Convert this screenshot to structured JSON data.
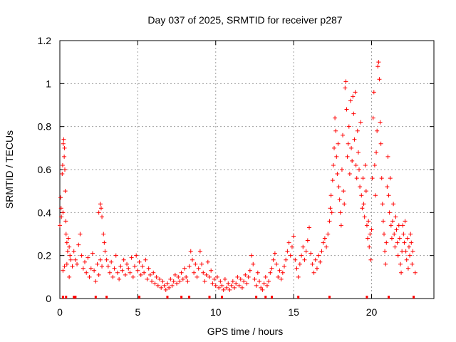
{
  "chart_data": {
    "type": "scatter",
    "title": "Day 037 of 2025, SRMTID for receiver p287",
    "xlabel": "GPS time / hours",
    "ylabel": "SRMTID / TECUs",
    "xlim": [
      0,
      24
    ],
    "ylim": [
      0,
      1.2
    ],
    "xticks": [
      0,
      5,
      10,
      15,
      20
    ],
    "xtick_labels": [
      "0",
      "5",
      "10",
      "15",
      "20"
    ],
    "yticks": [
      0,
      0.2,
      0.4,
      0.6,
      0.8,
      1.0,
      1.2
    ],
    "ytick_labels": [
      "0",
      "0.2",
      "0.4",
      "0.6",
      "0.8",
      "1",
      "1.2"
    ],
    "grid": true,
    "marker": "plus",
    "color": "#ff0000",
    "series": [
      {
        "name": "SRMTID",
        "points": [
          [
            0.0,
            0.34
          ],
          [
            0.05,
            0.47
          ],
          [
            0.08,
            0.42
          ],
          [
            0.1,
            0.38
          ],
          [
            0.15,
            0.58
          ],
          [
            0.18,
            0.62
          ],
          [
            0.2,
            0.4
          ],
          [
            0.22,
            0.72
          ],
          [
            0.25,
            0.74
          ],
          [
            0.28,
            0.66
          ],
          [
            0.3,
            0.7
          ],
          [
            0.32,
            0.6
          ],
          [
            0.35,
            0.5
          ],
          [
            0.38,
            0.36
          ],
          [
            0.4,
            0.3
          ],
          [
            0.45,
            0.26
          ],
          [
            0.5,
            0.22
          ],
          [
            0.55,
            0.28
          ],
          [
            0.6,
            0.24
          ],
          [
            0.65,
            0.2
          ],
          [
            0.7,
            0.18
          ],
          [
            0.2,
            0.13
          ],
          [
            0.3,
            0.15
          ],
          [
            0.45,
            0.16
          ],
          [
            0.6,
            0.1
          ],
          [
            0.8,
            0.15
          ],
          [
            0.9,
            0.22
          ],
          [
            1.0,
            0.18
          ],
          [
            1.1,
            0.16
          ],
          [
            1.2,
            0.25
          ],
          [
            1.3,
            0.3
          ],
          [
            1.4,
            0.2
          ],
          [
            1.5,
            0.14
          ],
          [
            1.6,
            0.17
          ],
          [
            1.7,
            0.12
          ],
          [
            1.8,
            0.19
          ],
          [
            1.9,
            0.1
          ],
          [
            2.0,
            0.14
          ],
          [
            2.1,
            0.21
          ],
          [
            2.2,
            0.13
          ],
          [
            2.3,
            0.08
          ],
          [
            2.4,
            0.16
          ],
          [
            2.5,
            0.11
          ],
          [
            2.6,
            0.18
          ],
          [
            2.7,
            0.15
          ],
          [
            2.5,
            0.4
          ],
          [
            2.6,
            0.44
          ],
          [
            2.65,
            0.42
          ],
          [
            2.7,
            0.38
          ],
          [
            2.8,
            0.3
          ],
          [
            2.85,
            0.26
          ],
          [
            2.9,
            0.22
          ],
          [
            3.0,
            0.18
          ],
          [
            3.1,
            0.15
          ],
          [
            3.2,
            0.12
          ],
          [
            3.3,
            0.17
          ],
          [
            3.4,
            0.1
          ],
          [
            3.5,
            0.14
          ],
          [
            3.6,
            0.2
          ],
          [
            3.7,
            0.12
          ],
          [
            3.8,
            0.09
          ],
          [
            3.9,
            0.15
          ],
          [
            4.0,
            0.13
          ],
          [
            4.1,
            0.18
          ],
          [
            4.2,
            0.11
          ],
          [
            4.3,
            0.16
          ],
          [
            4.4,
            0.14
          ],
          [
            4.5,
            0.12
          ],
          [
            4.6,
            0.19
          ],
          [
            4.7,
            0.1
          ],
          [
            4.8,
            0.15
          ],
          [
            4.9,
            0.2
          ],
          [
            5.0,
            0.13
          ],
          [
            5.1,
            0.17
          ],
          [
            5.2,
            0.11
          ],
          [
            5.3,
            0.15
          ],
          [
            5.4,
            0.12
          ],
          [
            5.5,
            0.18
          ],
          [
            5.6,
            0.09
          ],
          [
            5.7,
            0.14
          ],
          [
            5.8,
            0.11
          ],
          [
            5.9,
            0.08
          ],
          [
            6.0,
            0.12
          ],
          [
            6.1,
            0.07
          ],
          [
            6.2,
            0.1
          ],
          [
            6.3,
            0.06
          ],
          [
            6.4,
            0.09
          ],
          [
            6.5,
            0.05
          ],
          [
            6.6,
            0.08
          ],
          [
            6.7,
            0.06
          ],
          [
            6.8,
            0.04
          ],
          [
            6.9,
            0.07
          ],
          [
            7.0,
            0.05
          ],
          [
            7.1,
            0.09
          ],
          [
            7.2,
            0.06
          ],
          [
            7.3,
            0.08
          ],
          [
            7.4,
            0.11
          ],
          [
            7.5,
            0.07
          ],
          [
            7.6,
            0.1
          ],
          [
            7.7,
            0.08
          ],
          [
            7.8,
            0.12
          ],
          [
            7.9,
            0.09
          ],
          [
            8.0,
            0.14
          ],
          [
            8.1,
            0.1
          ],
          [
            8.2,
            0.08
          ],
          [
            8.3,
            0.15
          ],
          [
            8.4,
            0.22
          ],
          [
            8.5,
            0.18
          ],
          [
            8.6,
            0.12
          ],
          [
            8.7,
            0.16
          ],
          [
            8.8,
            0.1
          ],
          [
            8.9,
            0.14
          ],
          [
            9.0,
            0.22
          ],
          [
            9.1,
            0.16
          ],
          [
            9.2,
            0.12
          ],
          [
            9.3,
            0.08
          ],
          [
            9.4,
            0.11
          ],
          [
            9.5,
            0.17
          ],
          [
            9.6,
            0.1
          ],
          [
            9.7,
            0.13
          ],
          [
            9.8,
            0.07
          ],
          [
            9.9,
            0.09
          ],
          [
            10.0,
            0.06
          ],
          [
            10.1,
            0.1
          ],
          [
            10.2,
            0.05
          ],
          [
            10.3,
            0.08
          ],
          [
            10.4,
            0.06
          ],
          [
            10.5,
            0.04
          ],
          [
            10.6,
            0.09
          ],
          [
            10.7,
            0.05
          ],
          [
            10.8,
            0.07
          ],
          [
            10.9,
            0.04
          ],
          [
            11.0,
            0.06
          ],
          [
            11.1,
            0.08
          ],
          [
            11.2,
            0.05
          ],
          [
            11.3,
            0.07
          ],
          [
            11.4,
            0.1
          ],
          [
            11.5,
            0.06
          ],
          [
            11.6,
            0.09
          ],
          [
            11.7,
            0.05
          ],
          [
            11.8,
            0.08
          ],
          [
            11.9,
            0.11
          ],
          [
            12.0,
            0.07
          ],
          [
            12.1,
            0.1
          ],
          [
            12.2,
            0.13
          ],
          [
            12.3,
            0.2
          ],
          [
            12.4,
            0.16
          ],
          [
            12.5,
            0.09
          ],
          [
            12.6,
            0.06
          ],
          [
            12.7,
            0.12
          ],
          [
            12.8,
            0.08
          ],
          [
            12.9,
            0.05
          ],
          [
            13.0,
            0.04
          ],
          [
            13.1,
            0.07
          ],
          [
            13.2,
            0.1
          ],
          [
            13.3,
            0.06
          ],
          [
            13.4,
            0.08
          ],
          [
            13.5,
            0.12
          ],
          [
            13.6,
            0.14
          ],
          [
            13.7,
            0.18
          ],
          [
            13.8,
            0.21
          ],
          [
            13.9,
            0.16
          ],
          [
            14.0,
            0.1
          ],
          [
            14.1,
            0.13
          ],
          [
            14.2,
            0.09
          ],
          [
            14.3,
            0.12
          ],
          [
            14.4,
            0.15
          ],
          [
            14.5,
            0.18
          ],
          [
            14.6,
            0.22
          ],
          [
            14.7,
            0.26
          ],
          [
            14.8,
            0.2
          ],
          [
            14.9,
            0.24
          ],
          [
            15.0,
            0.29
          ],
          [
            15.1,
            0.18
          ],
          [
            15.2,
            0.14
          ],
          [
            15.3,
            0.1
          ],
          [
            15.4,
            0.16
          ],
          [
            15.5,
            0.2
          ],
          [
            15.6,
            0.24
          ],
          [
            15.7,
            0.18
          ],
          [
            15.8,
            0.22
          ],
          [
            15.9,
            0.27
          ],
          [
            16.0,
            0.33
          ],
          [
            16.1,
            0.21
          ],
          [
            16.2,
            0.16
          ],
          [
            16.3,
            0.12
          ],
          [
            16.4,
            0.18
          ],
          [
            16.5,
            0.14
          ],
          [
            16.6,
            0.2
          ],
          [
            16.7,
            0.17
          ],
          [
            16.8,
            0.22
          ],
          [
            16.9,
            0.26
          ],
          [
            17.0,
            0.28
          ],
          [
            17.1,
            0.24
          ],
          [
            17.2,
            0.3
          ],
          [
            17.3,
            0.36
          ],
          [
            17.35,
            0.42
          ],
          [
            17.4,
            0.48
          ],
          [
            17.45,
            0.4
          ],
          [
            17.5,
            0.55
          ],
          [
            17.55,
            0.62
          ],
          [
            17.6,
            0.7
          ],
          [
            17.65,
            0.84
          ],
          [
            17.7,
            0.78
          ],
          [
            17.75,
            0.66
          ],
          [
            17.8,
            0.58
          ],
          [
            17.85,
            0.72
          ],
          [
            17.9,
            0.52
          ],
          [
            17.95,
            0.46
          ],
          [
            18.0,
            0.4
          ],
          [
            18.05,
            0.34
          ],
          [
            18.1,
            0.6
          ],
          [
            18.15,
            0.76
          ],
          [
            18.2,
            0.5
          ],
          [
            18.25,
            0.44
          ],
          [
            18.3,
            0.98
          ],
          [
            18.35,
            1.01
          ],
          [
            18.4,
            0.88
          ],
          [
            18.45,
            0.66
          ],
          [
            18.5,
            0.72
          ],
          [
            18.55,
            0.8
          ],
          [
            18.6,
            0.58
          ],
          [
            18.65,
            0.92
          ],
          [
            18.7,
            0.7
          ],
          [
            18.75,
            0.64
          ],
          [
            18.8,
            0.94
          ],
          [
            18.85,
            0.86
          ],
          [
            18.9,
            0.74
          ],
          [
            18.95,
            0.96
          ],
          [
            19.0,
            0.62
          ],
          [
            19.05,
            0.56
          ],
          [
            19.1,
            0.78
          ],
          [
            19.15,
            0.68
          ],
          [
            19.2,
            0.6
          ],
          [
            19.25,
            0.52
          ],
          [
            19.3,
            0.82
          ],
          [
            19.35,
            0.48
          ],
          [
            19.4,
            0.42
          ],
          [
            19.45,
            0.56
          ],
          [
            19.5,
            0.44
          ],
          [
            19.55,
            0.38
          ],
          [
            19.6,
            0.62
          ],
          [
            19.65,
            0.5
          ],
          [
            19.7,
            0.34
          ],
          [
            19.75,
            0.28
          ],
          [
            19.8,
            0.36
          ],
          [
            19.85,
            0.24
          ],
          [
            19.9,
            0.3
          ],
          [
            19.95,
            0.18
          ],
          [
            20.0,
            0.32
          ],
          [
            20.05,
            0.56
          ],
          [
            20.1,
            0.84
          ],
          [
            20.15,
            0.96
          ],
          [
            20.2,
            0.62
          ],
          [
            20.25,
            0.48
          ],
          [
            20.3,
            0.68
          ],
          [
            20.35,
            0.78
          ],
          [
            20.4,
            1.08
          ],
          [
            20.45,
            1.1
          ],
          [
            20.5,
            1.02
          ],
          [
            20.55,
            0.82
          ],
          [
            20.6,
            0.72
          ],
          [
            20.65,
            0.56
          ],
          [
            20.7,
            0.44
          ],
          [
            20.75,
            0.36
          ],
          [
            20.8,
            0.3
          ],
          [
            20.85,
            0.22
          ],
          [
            20.9,
            0.16
          ],
          [
            20.95,
            0.26
          ],
          [
            21.0,
            0.52
          ],
          [
            21.05,
            0.66
          ],
          [
            21.1,
            0.48
          ],
          [
            21.15,
            0.4
          ],
          [
            21.2,
            0.56
          ],
          [
            21.25,
            0.34
          ],
          [
            21.3,
            0.28
          ],
          [
            21.35,
            0.36
          ],
          [
            21.4,
            0.44
          ],
          [
            21.45,
            0.3
          ],
          [
            21.5,
            0.24
          ],
          [
            21.55,
            0.38
          ],
          [
            21.6,
            0.32
          ],
          [
            21.65,
            0.26
          ],
          [
            21.7,
            0.2
          ],
          [
            21.75,
            0.34
          ],
          [
            21.8,
            0.28
          ],
          [
            21.85,
            0.16
          ],
          [
            21.9,
            0.12
          ],
          [
            21.95,
            0.22
          ],
          [
            22.0,
            0.34
          ],
          [
            22.05,
            0.3
          ],
          [
            22.1,
            0.26
          ],
          [
            22.15,
            0.36
          ],
          [
            22.2,
            0.22
          ],
          [
            22.25,
            0.18
          ],
          [
            22.3,
            0.28
          ],
          [
            22.35,
            0.14
          ],
          [
            22.4,
            0.24
          ],
          [
            22.45,
            0.2
          ],
          [
            22.5,
            0.3
          ],
          [
            22.55,
            0.26
          ],
          [
            22.6,
            0.16
          ],
          [
            22.65,
            0.22
          ],
          [
            22.8,
            0.12
          ]
        ]
      }
    ],
    "baseline_markers_x": [
      0.2,
      0.4,
      0.9,
      1.0,
      2.3,
      3.0,
      5.1,
      6.9,
      7.8,
      8.3,
      9.6,
      10.4,
      12.6,
      13.2,
      13.6,
      15.3,
      17.3,
      19.7,
      21.1,
      22.7
    ]
  }
}
